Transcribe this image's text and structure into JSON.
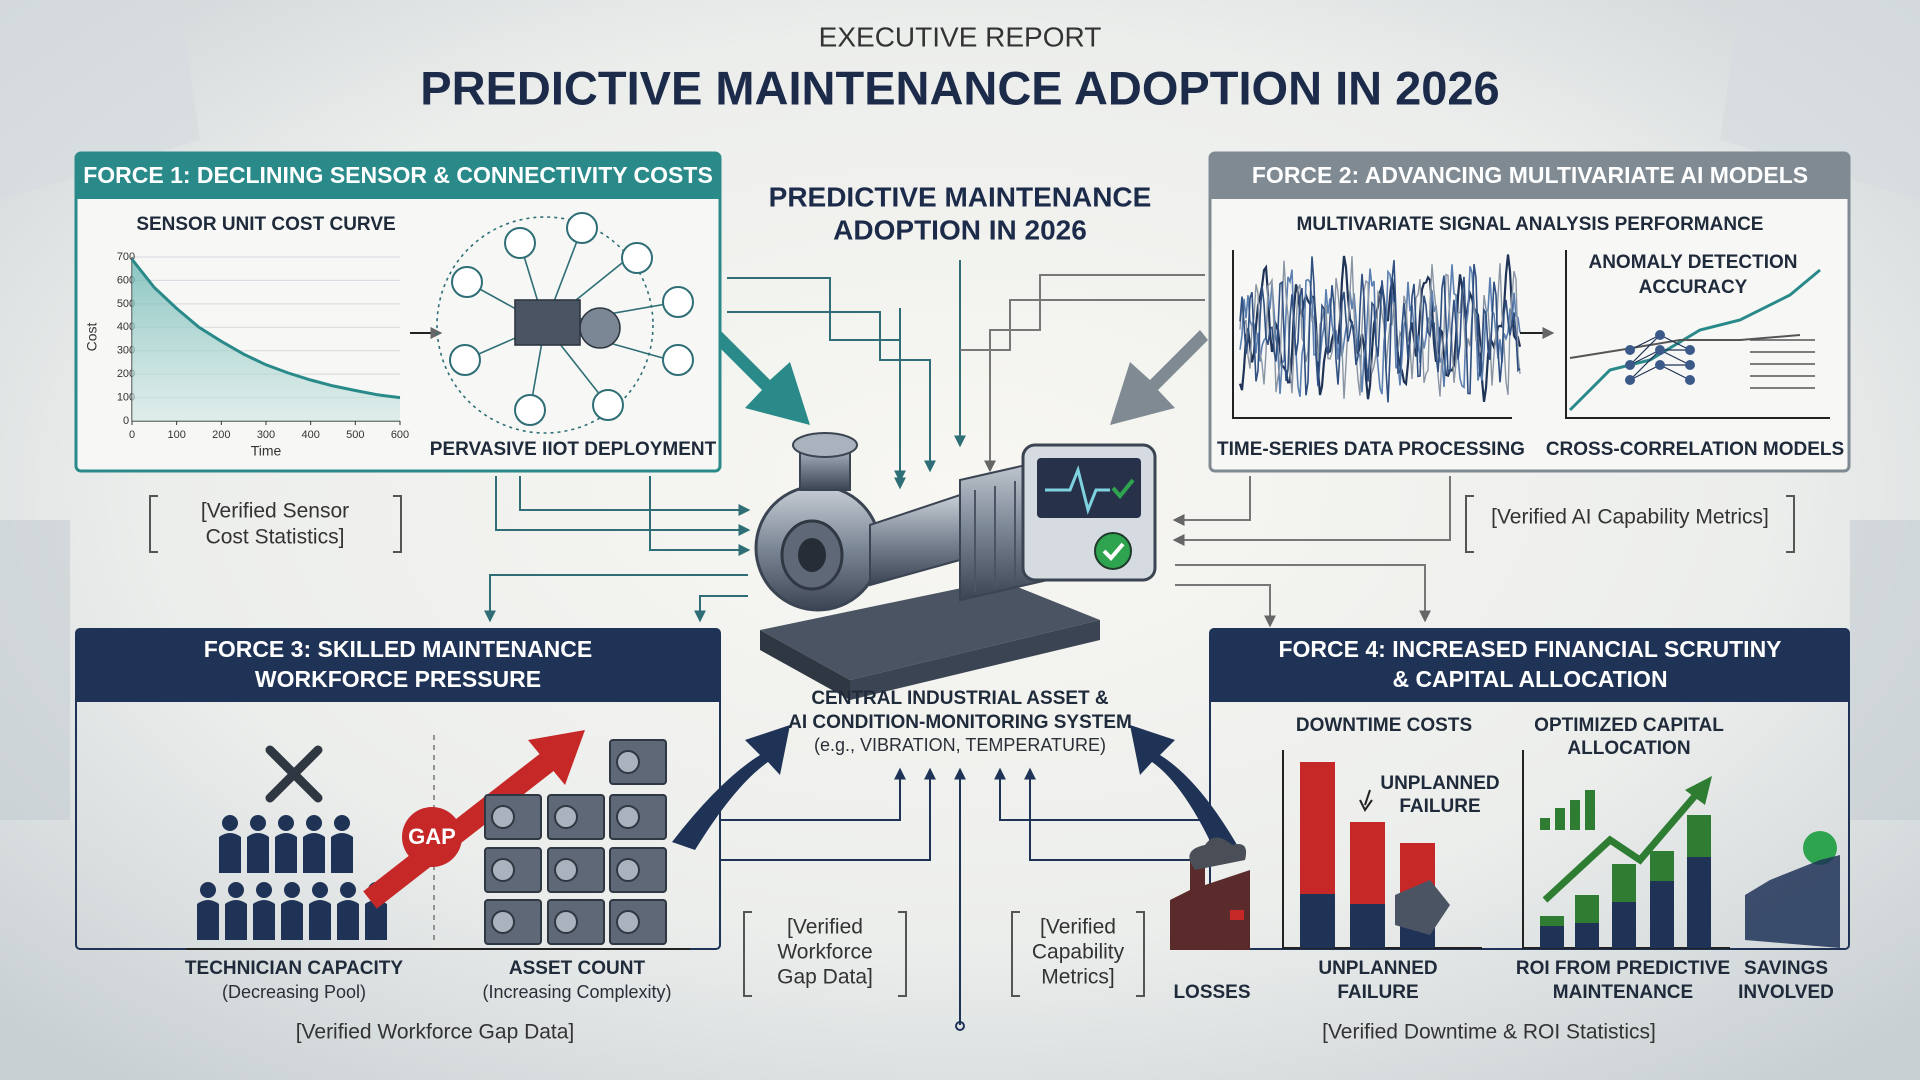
{
  "header": {
    "kicker": "EXECUTIVE REPORT",
    "title": "PREDICTIVE MAINTENANCE ADOPTION IN 2026"
  },
  "center": {
    "title_lines": [
      "PREDICTIVE MAINTENANCE",
      "ADOPTION IN 2026"
    ],
    "caption_lines": [
      "CENTRAL INDUSTRIAL ASSET &",
      "AI CONDITION-MONITORING SYSTEM",
      "(e.g., VIBRATION, TEMPERATURE)"
    ],
    "note_left_lines": [
      "[Verified",
      "Workforce",
      "Gap Data]"
    ],
    "note_right_lines": [
      "[Verified",
      "Capability",
      "Metrics]"
    ]
  },
  "force1": {
    "title": "FORCE 1: DECLINING SENSOR & CONNECTIVITY COSTS",
    "chart": {
      "type": "line",
      "title": "SENSOR UNIT COST CURVE",
      "x_label": "Time",
      "y_label": "Cost",
      "x": [
        0,
        50,
        100,
        150,
        200,
        250,
        300,
        350,
        400,
        450,
        500,
        550,
        600
      ],
      "values": [
        690,
        570,
        480,
        400,
        340,
        285,
        240,
        205,
        175,
        150,
        130,
        112,
        100
      ],
      "color": "#2a8a8a",
      "xlim": [
        0,
        600
      ],
      "ylim": [
        0,
        700
      ],
      "xticks": [
        0,
        100,
        200,
        300,
        400,
        500,
        600
      ],
      "yticks": [
        0,
        100,
        200,
        300,
        400,
        500,
        600,
        700
      ],
      "grid": true
    },
    "deployment_label": "PERVASIVE IIOT DEPLOYMENT",
    "note_lines": [
      "[Verified Sensor",
      "Cost Statistics]"
    ]
  },
  "force2": {
    "title": "FORCE 2: ADVANCING MULTIVARIATE AI MODELS",
    "subtitle": "MULTIVARIATE SIGNAL ANALYSIS PERFORMANCE",
    "accuracy_lines": [
      "ANOMALY DETECTION",
      "ACCURACY"
    ],
    "left_label": "TIME-SERIES DATA PROCESSING",
    "right_label": "CROSS-CORRELATION MODELS",
    "note": "[Verified AI Capability Metrics]"
  },
  "force3": {
    "title_lines": [
      "FORCE 3: SKILLED MAINTENANCE",
      "WORKFORCE PRESSURE"
    ],
    "gap": "GAP",
    "technician_label": "TECHNICIAN CAPACITY",
    "technician_sub": "(Decreasing Pool)",
    "asset_label": "ASSET COUNT",
    "asset_sub": "(Increasing Complexity)",
    "note": "[Verified Workforce Gap Data]"
  },
  "force4": {
    "title_lines": [
      "FORCE 4: INCREASED FINANCIAL SCRUTINY",
      "& CAPITAL ALLOCATION"
    ],
    "downtime_title": "DOWNTIME COSTS",
    "capital_lines": [
      "OPTIMIZED CAPITAL",
      "ALLOCATION"
    ],
    "failure_callout_lines": [
      "UNPLANNED",
      "FAILURE"
    ],
    "losses_label": "LOSSES",
    "failure_label_lines": [
      "UNPLANNED",
      "FAILURE"
    ],
    "roi_label_lines": [
      "ROI FROM PREDICTIVE",
      "MAINTENANCE"
    ],
    "savings_label_lines": [
      "SAVINGS",
      "INVOLVED"
    ],
    "note": "[Verified Downtime & ROI Statistics]"
  }
}
